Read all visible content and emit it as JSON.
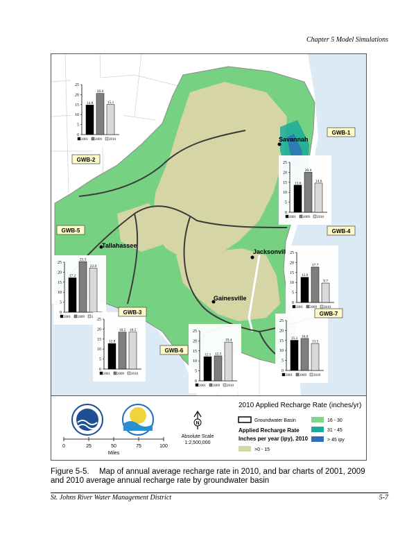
{
  "header": {
    "chapter": "Chapter 5 Model Simulations"
  },
  "map": {
    "cities": [
      {
        "name": "Savannah"
      },
      {
        "name": "Tallahassee"
      },
      {
        "name": "Jacksonville"
      },
      {
        "name": "Gainesville"
      }
    ]
  },
  "chart_data": [
    {
      "type": "bar",
      "basin": "GWB-2",
      "categories": [
        "2001",
        "2009",
        "2010"
      ],
      "values": [
        14.8,
        20.6,
        15.1
      ],
      "ylim": [
        0,
        25
      ],
      "yticks": [
        0,
        5,
        10,
        15,
        20,
        25
      ]
    },
    {
      "type": "bar",
      "basin": "GWB-1",
      "categories": [
        "2001",
        "2009",
        "2010"
      ],
      "values": [
        13.6,
        20.0,
        14.6
      ],
      "ylim": [
        0,
        25
      ],
      "yticks": [
        0,
        5,
        10,
        15,
        20,
        25
      ]
    },
    {
      "type": "bar",
      "basin": "GWB-5",
      "categories": [
        "2001",
        "2009",
        "2010"
      ],
      "values": [
        17.2,
        25.3,
        22.0
      ],
      "ylim": [
        0,
        25
      ],
      "yticks": [
        0,
        5,
        10,
        15,
        20,
        25
      ]
    },
    {
      "type": "bar",
      "basin": "GWB-4",
      "categories": [
        "2001",
        "2009",
        "2010"
      ],
      "values": [
        12.6,
        17.7,
        9.7
      ],
      "ylim": [
        0,
        25
      ],
      "yticks": [
        0,
        5,
        10,
        15,
        20,
        25
      ]
    },
    {
      "type": "bar",
      "basin": "GWB-3",
      "categories": [
        "2001",
        "2009",
        "2010"
      ],
      "values": [
        12.8,
        18.5,
        18.5
      ],
      "ylim": [
        0,
        25
      ],
      "yticks": [
        0,
        5,
        10,
        15,
        20,
        25
      ]
    },
    {
      "type": "bar",
      "basin": "GWB-6",
      "categories": [
        "2001",
        "2009",
        "2010"
      ],
      "values": [
        12.1,
        12.5,
        19.4
      ],
      "ylim": [
        0,
        25
      ],
      "yticks": [
        0,
        5,
        10,
        15,
        20,
        25
      ]
    },
    {
      "type": "bar",
      "basin": "GWB-7",
      "categories": [
        "2001",
        "2009",
        "2010"
      ],
      "values": [
        15.1,
        16.0,
        13.5
      ],
      "ylim": [
        0,
        25
      ],
      "yticks": [
        0,
        5,
        10,
        15,
        20,
        25
      ]
    }
  ],
  "series_colors": {
    "2001": "#000000",
    "2009": "#7f7f7f",
    "2010": "#d9d9d9"
  },
  "legend": {
    "title": "2010 Applied Recharge Rate (inches/yr)",
    "basin_label": "Groundwater Basin",
    "heading1": "Applied Recharge Rate",
    "heading2": "Inches per year (ipy), 2010",
    "classes": [
      {
        "label": ">0 - 15",
        "color": "#d6d5a6"
      },
      {
        "label": "16 - 30",
        "color": "#7fd68a"
      },
      {
        "label": "31 - 45",
        "color": "#1aab9b"
      },
      {
        "label": "> 45 ipy",
        "color": "#2f6fb9"
      }
    ],
    "north": "N",
    "scale_label": "Absolute Scale",
    "scale_ratio": "1:2,500,000",
    "scale_ticks": [
      "0",
      "25",
      "50",
      "75",
      "100"
    ],
    "scale_unit": "Miles"
  },
  "caption": {
    "label": "Figure 5-5.",
    "text": "Map of annual average recharge rate in 2010, and bar charts of 2001, 2009 and 2010 average annual recharge rate by groundwater basin"
  },
  "footer": {
    "left": "St. Johns River Water Management District",
    "right": "5-7"
  }
}
